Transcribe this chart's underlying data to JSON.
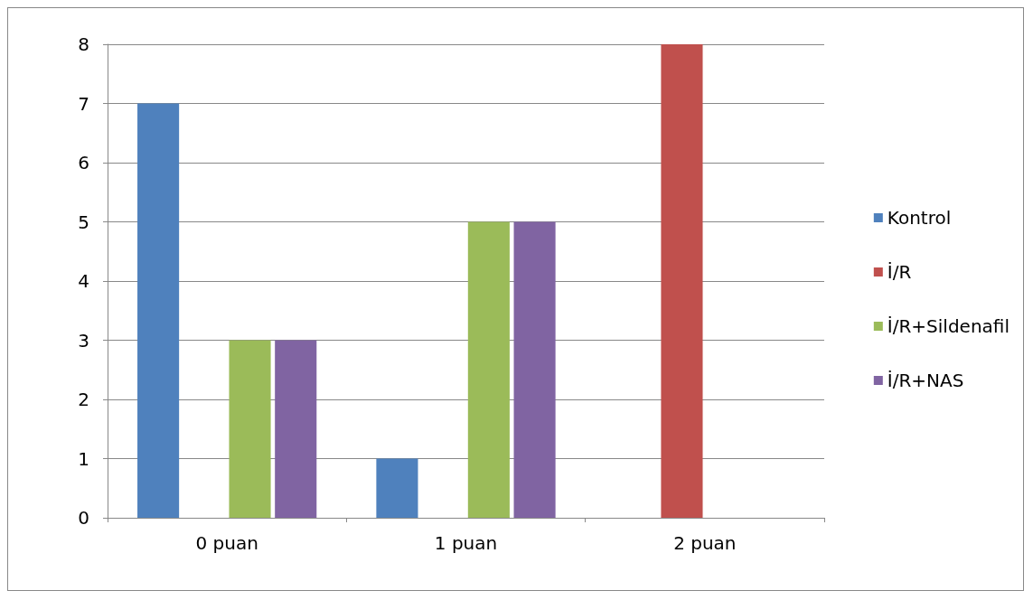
{
  "chart_data": {
    "type": "bar",
    "categories": [
      "0 puan",
      "1 puan",
      "2 puan"
    ],
    "series": [
      {
        "name": "Kontrol",
        "color": "#4f81bd",
        "values": [
          7,
          1,
          0
        ]
      },
      {
        "name": "İ/R",
        "color": "#c0504d",
        "values": [
          0,
          0,
          8
        ]
      },
      {
        "name": "İ/R+Sildenafil",
        "color": "#9bbb59",
        "values": [
          3,
          5,
          0
        ]
      },
      {
        "name": "İ/R+NAS",
        "color": "#8064a2",
        "values": [
          3,
          5,
          0
        ]
      }
    ],
    "ylim": [
      0,
      8
    ],
    "yticks": [
      0,
      1,
      2,
      3,
      4,
      5,
      6,
      7,
      8
    ],
    "grid": "y",
    "legend": "right"
  }
}
